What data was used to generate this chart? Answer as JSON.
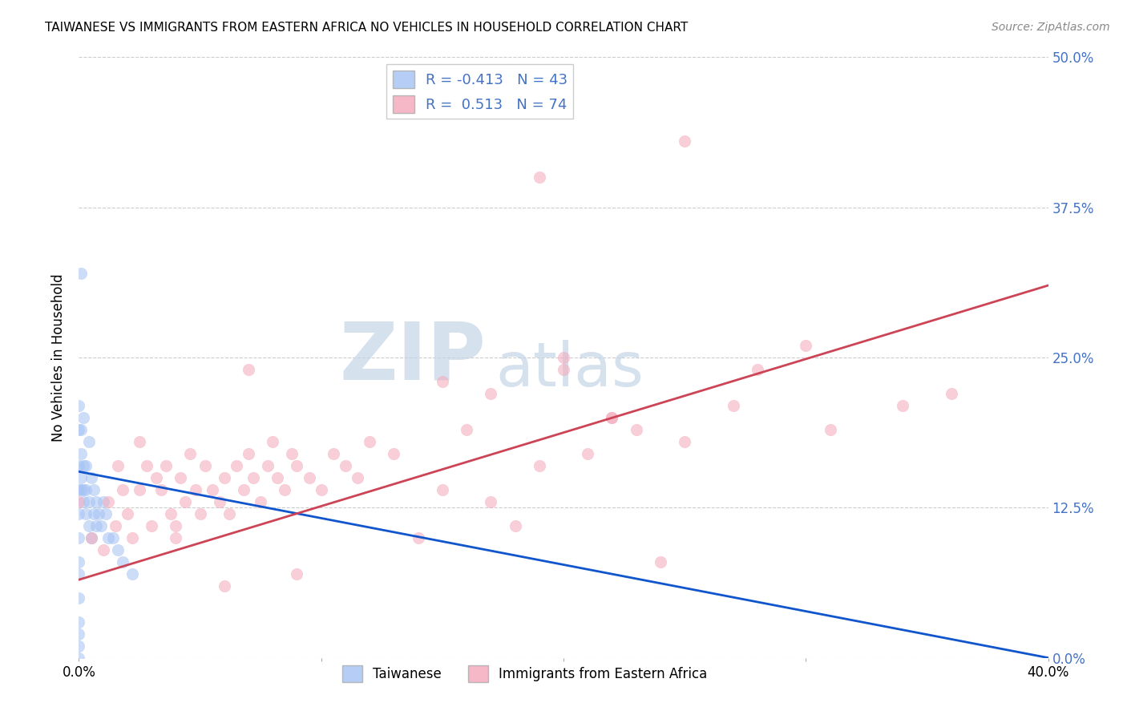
{
  "title": "TAIWANESE VS IMMIGRANTS FROM EASTERN AFRICA NO VEHICLES IN HOUSEHOLD CORRELATION CHART",
  "source": "Source: ZipAtlas.com",
  "ylabel": "No Vehicles in Household",
  "xlim": [
    0.0,
    0.4
  ],
  "ylim": [
    0.0,
    0.5
  ],
  "xticks": [
    0.0,
    0.1,
    0.2,
    0.3,
    0.4
  ],
  "xticklabels": [
    "0.0%",
    "",
    "",
    "",
    "40.0%"
  ],
  "yticks": [
    0.0,
    0.125,
    0.25,
    0.375,
    0.5
  ],
  "yticklabels": [
    "0.0%",
    "12.5%",
    "25.0%",
    "37.5%",
    "50.0%"
  ],
  "right_ytick_color": "#4472c4",
  "taiwanese_color": "#a4c2f4",
  "eastern_africa_color": "#f4a7b9",
  "taiwanese_line_color": "#1155cc",
  "eastern_africa_line_color": "#cc4455",
  "R_taiwanese": -0.413,
  "N_taiwanese": 43,
  "R_eastern_africa": 0.513,
  "N_eastern_africa": 74,
  "watermark_zip": "ZIP",
  "watermark_atlas": "atlas",
  "legend_label_1": "Taiwanese",
  "legend_label_2": "Immigrants from Eastern Africa",
  "tw_line_x": [
    0.0,
    0.4
  ],
  "tw_line_y": [
    0.155,
    0.0
  ],
  "ea_line_x": [
    0.0,
    0.4
  ],
  "ea_line_y": [
    0.065,
    0.31
  ],
  "taiwanese_x": [
    0.0,
    0.0,
    0.0,
    0.0,
    0.0,
    0.0,
    0.0,
    0.0,
    0.0,
    0.0,
    0.0,
    0.0,
    0.0,
    0.001,
    0.001,
    0.001,
    0.001,
    0.001,
    0.002,
    0.002,
    0.002,
    0.002,
    0.003,
    0.003,
    0.003,
    0.004,
    0.004,
    0.004,
    0.005,
    0.005,
    0.006,
    0.006,
    0.007,
    0.007,
    0.008,
    0.009,
    0.01,
    0.011,
    0.012,
    0.014,
    0.016,
    0.018,
    0.022
  ],
  "taiwanese_y": [
    0.0,
    0.01,
    0.02,
    0.03,
    0.05,
    0.07,
    0.08,
    0.1,
    0.12,
    0.14,
    0.16,
    0.19,
    0.21,
    0.14,
    0.15,
    0.17,
    0.19,
    0.32,
    0.13,
    0.14,
    0.16,
    0.2,
    0.12,
    0.14,
    0.16,
    0.11,
    0.13,
    0.18,
    0.1,
    0.15,
    0.12,
    0.14,
    0.11,
    0.13,
    0.12,
    0.11,
    0.13,
    0.12,
    0.1,
    0.1,
    0.09,
    0.08,
    0.07
  ],
  "eastern_africa_x": [
    0.0,
    0.005,
    0.01,
    0.012,
    0.015,
    0.016,
    0.018,
    0.02,
    0.022,
    0.025,
    0.025,
    0.028,
    0.03,
    0.032,
    0.034,
    0.036,
    0.038,
    0.04,
    0.042,
    0.044,
    0.046,
    0.048,
    0.05,
    0.052,
    0.055,
    0.058,
    0.06,
    0.062,
    0.065,
    0.068,
    0.07,
    0.072,
    0.075,
    0.078,
    0.08,
    0.082,
    0.085,
    0.088,
    0.09,
    0.095,
    0.1,
    0.105,
    0.11,
    0.115,
    0.12,
    0.13,
    0.14,
    0.15,
    0.16,
    0.17,
    0.18,
    0.19,
    0.2,
    0.21,
    0.22,
    0.23,
    0.24,
    0.25,
    0.27,
    0.28,
    0.3,
    0.31,
    0.34,
    0.36,
    0.2,
    0.22,
    0.19,
    0.15,
    0.17,
    0.25,
    0.09,
    0.07,
    0.04,
    0.06
  ],
  "eastern_africa_y": [
    0.13,
    0.1,
    0.09,
    0.13,
    0.11,
    0.16,
    0.14,
    0.12,
    0.1,
    0.14,
    0.18,
    0.16,
    0.11,
    0.15,
    0.14,
    0.16,
    0.12,
    0.11,
    0.15,
    0.13,
    0.17,
    0.14,
    0.12,
    0.16,
    0.14,
    0.13,
    0.15,
    0.12,
    0.16,
    0.14,
    0.17,
    0.15,
    0.13,
    0.16,
    0.18,
    0.15,
    0.14,
    0.17,
    0.16,
    0.15,
    0.14,
    0.17,
    0.16,
    0.15,
    0.18,
    0.17,
    0.1,
    0.14,
    0.19,
    0.13,
    0.11,
    0.16,
    0.24,
    0.17,
    0.2,
    0.19,
    0.08,
    0.18,
    0.21,
    0.24,
    0.26,
    0.19,
    0.21,
    0.22,
    0.25,
    0.2,
    0.4,
    0.23,
    0.22,
    0.43,
    0.07,
    0.24,
    0.1,
    0.06
  ]
}
